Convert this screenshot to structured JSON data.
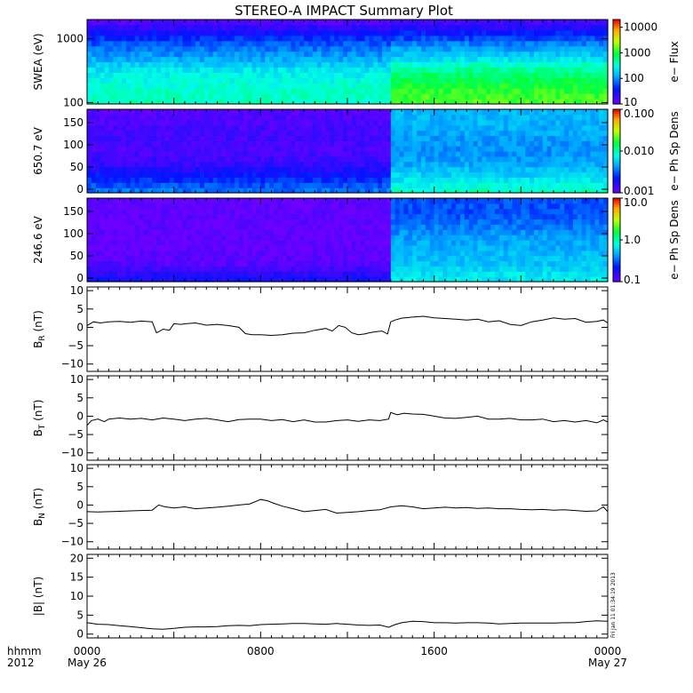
{
  "chart_data": {
    "type": "line",
    "title": "STEREO-A IMPACT Summary Plot",
    "x_axis": {
      "range_hours": [
        0,
        24
      ],
      "ticks": [
        {
          "hours": 0,
          "label": "0000",
          "sublabel": "May 26"
        },
        {
          "hours": 8,
          "label": "0800",
          "sublabel": ""
        },
        {
          "hours": 16,
          "label": "1600",
          "sublabel": ""
        },
        {
          "hours": 24,
          "label": "0000",
          "sublabel": "May 27"
        }
      ],
      "left_labels": [
        "hhmm",
        "2012"
      ]
    },
    "stamp": "Fri Jan 11 01:34:19 2013",
    "panels": [
      {
        "id": "swea",
        "type": "heatmap",
        "ylabel": "SWEA (eV)",
        "yscale": "log",
        "ylim": [
          95,
          2000
        ],
        "yticks": [
          {
            "v": 100,
            "label": "100"
          },
          {
            "v": 1000,
            "label": "1000"
          }
        ],
        "colorbar": {
          "label": "e− Flux",
          "scale": "log",
          "range": [
            10,
            20000
          ],
          "ticks": [
            {
              "v": 10,
              "label": "10"
            },
            {
              "v": 100,
              "label": "100"
            },
            {
              "v": 1000,
              "label": "1000"
            },
            {
              "v": 10000,
              "label": "10000"
            }
          ]
        },
        "profile": {
          "levels_y": [
            95,
            150,
            300,
            500,
            700,
            1000,
            1300,
            1600,
            2000
          ],
          "before_14h_flux": [
            400,
            380,
            250,
            120,
            80,
            50,
            30,
            20,
            12
          ],
          "after_14h_flux": [
            1500,
            1200,
            600,
            200,
            120,
            60,
            35,
            22,
            14
          ]
        }
      },
      {
        "id": "pad650",
        "type": "heatmap",
        "ylabel": "650.7 eV",
        "yscale": "linear",
        "ylim": [
          -8,
          180
        ],
        "yticks": [
          {
            "v": 0,
            "label": "0"
          },
          {
            "v": 50,
            "label": "50"
          },
          {
            "v": 100,
            "label": "100"
          },
          {
            "v": 150,
            "label": "150"
          }
        ],
        "colorbar": {
          "label": "e− Ph Sp Dens",
          "scale": "log",
          "range": [
            0.001,
            0.1
          ],
          "ticks": [
            {
              "v": 0.001,
              "label": "0.001"
            },
            {
              "v": 0.01,
              "label": "0.010"
            },
            {
              "v": 0.1,
              "label": "0.100"
            }
          ]
        },
        "profile": {
          "levels_y": [
            0,
            30,
            60,
            90,
            120,
            150,
            180
          ],
          "before_14h_value": [
            0.0035,
            0.0022,
            0.0015,
            0.0013,
            0.0014,
            0.0013,
            0.0012
          ],
          "after_14h_value": [
            0.009,
            0.006,
            0.0045,
            0.004,
            0.0045,
            0.005,
            0.005
          ]
        }
      },
      {
        "id": "pad246",
        "type": "heatmap",
        "ylabel": "246.6 eV",
        "yscale": "linear",
        "ylim": [
          -8,
          180
        ],
        "yticks": [
          {
            "v": 0,
            "label": "0"
          },
          {
            "v": 50,
            "label": "50"
          },
          {
            "v": 100,
            "label": "100"
          },
          {
            "v": 150,
            "label": "150"
          }
        ],
        "colorbar": {
          "label": "e− Ph Sp Dens",
          "scale": "log",
          "range": [
            0.1,
            10
          ],
          "ticks": [
            {
              "v": 0.1,
              "label": "0.1"
            },
            {
              "v": 1,
              "label": "1.0"
            },
            {
              "v": 10,
              "label": "10.0"
            }
          ]
        },
        "profile": {
          "levels_y": [
            0,
            30,
            60,
            90,
            120,
            150,
            180
          ],
          "before_14h_value": [
            0.2,
            0.12,
            0.11,
            0.11,
            0.11,
            0.11,
            0.11
          ],
          "after_14h_value": [
            0.7,
            0.55,
            0.5,
            0.45,
            0.35,
            0.3,
            0.3
          ]
        }
      },
      {
        "id": "br",
        "type": "line",
        "ylabel_main": "B",
        "ylabel_sub": "R",
        "ylabel_unit": " (nT)",
        "ylim": [
          -12,
          11
        ],
        "yticks": [
          {
            "v": -10,
            "label": "−10"
          },
          {
            "v": -5,
            "label": "−5"
          },
          {
            "v": 0,
            "label": "0"
          },
          {
            "v": 5,
            "label": "5"
          },
          {
            "v": 10,
            "label": "10"
          }
        ],
        "x": [
          0,
          0.3,
          0.6,
          1.0,
          1.5,
          2.0,
          2.5,
          3.0,
          3.2,
          3.3,
          3.5,
          3.8,
          4.0,
          4.3,
          4.6,
          5.0,
          5.5,
          6.0,
          6.5,
          7.0,
          7.3,
          7.6,
          8.0,
          8.5,
          9.0,
          9.5,
          10.0,
          10.5,
          11.0,
          11.3,
          11.6,
          11.9,
          12.2,
          12.5,
          12.8,
          13.0,
          13.3,
          13.6,
          13.85,
          14.0,
          14.2,
          14.5,
          15.0,
          15.5,
          16.0,
          16.5,
          17.0,
          17.5,
          18.0,
          18.5,
          19.0,
          19.5,
          20.0,
          20.5,
          21.0,
          21.5,
          22.0,
          22.5,
          23.0,
          23.5,
          23.8,
          24.0
        ],
        "y": [
          0.5,
          1.5,
          1.2,
          1.5,
          1.6,
          1.4,
          1.7,
          1.5,
          -1.5,
          -1.2,
          -0.5,
          -0.8,
          1.0,
          0.8,
          1.0,
          1.2,
          0.6,
          0.8,
          0.5,
          0.0,
          -1.7,
          -2.0,
          -2.0,
          -2.2,
          -2.0,
          -1.6,
          -1.5,
          -0.8,
          -0.3,
          -1.0,
          0.5,
          0.0,
          -1.5,
          -2.0,
          -1.8,
          -1.5,
          -1.2,
          -1.0,
          -1.8,
          1.5,
          2.0,
          2.5,
          2.8,
          3.0,
          2.6,
          2.4,
          2.2,
          2.0,
          2.2,
          1.5,
          1.8,
          0.8,
          0.5,
          1.5,
          2.0,
          2.6,
          2.2,
          2.4,
          1.4,
          1.6,
          2.0,
          1.2
        ]
      },
      {
        "id": "bt",
        "type": "line",
        "ylabel_main": "B",
        "ylabel_sub": "T",
        "ylabel_unit": " (nT)",
        "ylim": [
          -12,
          11
        ],
        "yticks": [
          {
            "v": -10,
            "label": "−10"
          },
          {
            "v": -5,
            "label": "−5"
          },
          {
            "v": 0,
            "label": "0"
          },
          {
            "v": 5,
            "label": "5"
          },
          {
            "v": 10,
            "label": "10"
          }
        ],
        "x": [
          0,
          0.2,
          0.5,
          0.8,
          1.0,
          1.5,
          2.0,
          2.5,
          3.0,
          3.5,
          4.0,
          4.5,
          5.0,
          5.5,
          6.0,
          6.5,
          7.0,
          7.5,
          8.0,
          8.5,
          9.0,
          9.5,
          10.0,
          10.5,
          11.0,
          11.5,
          12.0,
          12.5,
          13.0,
          13.5,
          13.9,
          14.0,
          14.3,
          14.6,
          15.0,
          15.5,
          16.0,
          16.5,
          17.0,
          17.5,
          18.0,
          18.5,
          19.0,
          19.5,
          20.0,
          20.5,
          21.0,
          21.5,
          22.0,
          22.5,
          23.0,
          23.5,
          23.8,
          24.0
        ],
        "y": [
          -2.5,
          -1.2,
          -0.8,
          -1.5,
          -0.8,
          -0.5,
          -0.8,
          -0.6,
          -1.0,
          -0.5,
          -0.8,
          -1.2,
          -0.8,
          -0.6,
          -1.0,
          -1.5,
          -0.9,
          -0.8,
          -0.8,
          -1.2,
          -0.9,
          -1.5,
          -1.0,
          -1.6,
          -1.6,
          -1.2,
          -1.0,
          -1.4,
          -1.0,
          -1.2,
          -0.8,
          1.0,
          0.4,
          0.8,
          0.6,
          0.5,
          0.0,
          -0.5,
          -0.6,
          -0.3,
          0.0,
          -0.8,
          -0.8,
          -0.6,
          -1.0,
          -1.0,
          -0.8,
          -1.5,
          -1.2,
          -1.6,
          -1.2,
          -1.8,
          -1.0,
          -1.6
        ]
      },
      {
        "id": "bn",
        "type": "line",
        "ylabel_main": "B",
        "ylabel_sub": "N",
        "ylabel_unit": " (nT)",
        "ylim": [
          -12,
          11
        ],
        "yticks": [
          {
            "v": -10,
            "label": "−10"
          },
          {
            "v": -5,
            "label": "−5"
          },
          {
            "v": 0,
            "label": "0"
          },
          {
            "v": 5,
            "label": "5"
          },
          {
            "v": 10,
            "label": "10"
          }
        ],
        "x": [
          0,
          0.5,
          1.0,
          1.5,
          2.0,
          2.5,
          3.0,
          3.3,
          3.6,
          4.0,
          4.5,
          5.0,
          5.5,
          6.0,
          6.5,
          7.0,
          7.5,
          8.0,
          8.3,
          8.6,
          9.0,
          9.5,
          10.0,
          10.5,
          11.0,
          11.5,
          12.0,
          12.5,
          13.0,
          13.5,
          14.0,
          14.5,
          15.0,
          15.5,
          16.0,
          16.5,
          17.0,
          17.5,
          18.0,
          18.5,
          19.0,
          19.5,
          20.0,
          20.5,
          21.0,
          21.5,
          22.0,
          22.5,
          23.0,
          23.5,
          23.8,
          24.0
        ],
        "y": [
          -1.8,
          -1.9,
          -1.8,
          -1.7,
          -1.6,
          -1.5,
          -1.4,
          0.0,
          -0.5,
          -0.8,
          -0.5,
          -1.0,
          -0.8,
          -0.6,
          -0.3,
          0.0,
          0.3,
          1.5,
          1.2,
          0.5,
          -0.3,
          -1.0,
          -1.8,
          -1.5,
          -1.2,
          -2.2,
          -2.0,
          -1.8,
          -1.5,
          -1.3,
          -0.5,
          -0.2,
          -0.5,
          -1.0,
          -0.8,
          -0.6,
          -0.8,
          -0.7,
          -0.9,
          -0.8,
          -1.0,
          -1.0,
          -1.2,
          -1.3,
          -1.2,
          -1.4,
          -1.3,
          -1.5,
          -1.7,
          -1.6,
          -0.5,
          -1.8
        ]
      },
      {
        "id": "bmag",
        "type": "line",
        "ylabel_main": "|B| (nT)",
        "ylim": [
          -1,
          21
        ],
        "yticks": [
          {
            "v": 0,
            "label": "0"
          },
          {
            "v": 5,
            "label": "5"
          },
          {
            "v": 10,
            "label": "10"
          },
          {
            "v": 15,
            "label": "15"
          },
          {
            "v": 20,
            "label": "20"
          }
        ],
        "x": [
          0,
          0.5,
          1.0,
          1.5,
          2.0,
          2.5,
          3.0,
          3.5,
          4.0,
          4.5,
          5.0,
          5.5,
          6.0,
          6.5,
          7.0,
          7.5,
          8.0,
          8.5,
          9.0,
          9.5,
          10.0,
          10.5,
          11.0,
          11.5,
          12.0,
          12.5,
          13.0,
          13.5,
          13.9,
          14.2,
          14.5,
          15.0,
          15.5,
          16.0,
          16.5,
          17.0,
          17.5,
          18.0,
          18.5,
          19.0,
          19.5,
          20.0,
          20.5,
          21.0,
          21.5,
          22.0,
          22.5,
          23.0,
          23.5,
          24.0
        ],
        "y": [
          3.0,
          2.6,
          2.5,
          2.2,
          2.0,
          1.7,
          1.4,
          1.3,
          1.5,
          1.8,
          1.9,
          1.9,
          2.0,
          2.2,
          2.3,
          2.2,
          2.5,
          2.6,
          2.7,
          2.8,
          2.8,
          2.7,
          2.6,
          2.8,
          2.6,
          2.4,
          2.3,
          2.4,
          1.8,
          2.5,
          3.0,
          3.4,
          3.3,
          3.0,
          3.0,
          2.9,
          3.0,
          3.0,
          2.9,
          2.7,
          2.8,
          2.9,
          2.9,
          2.9,
          2.9,
          3.0,
          3.0,
          3.3,
          3.5,
          3.4
        ]
      }
    ]
  }
}
